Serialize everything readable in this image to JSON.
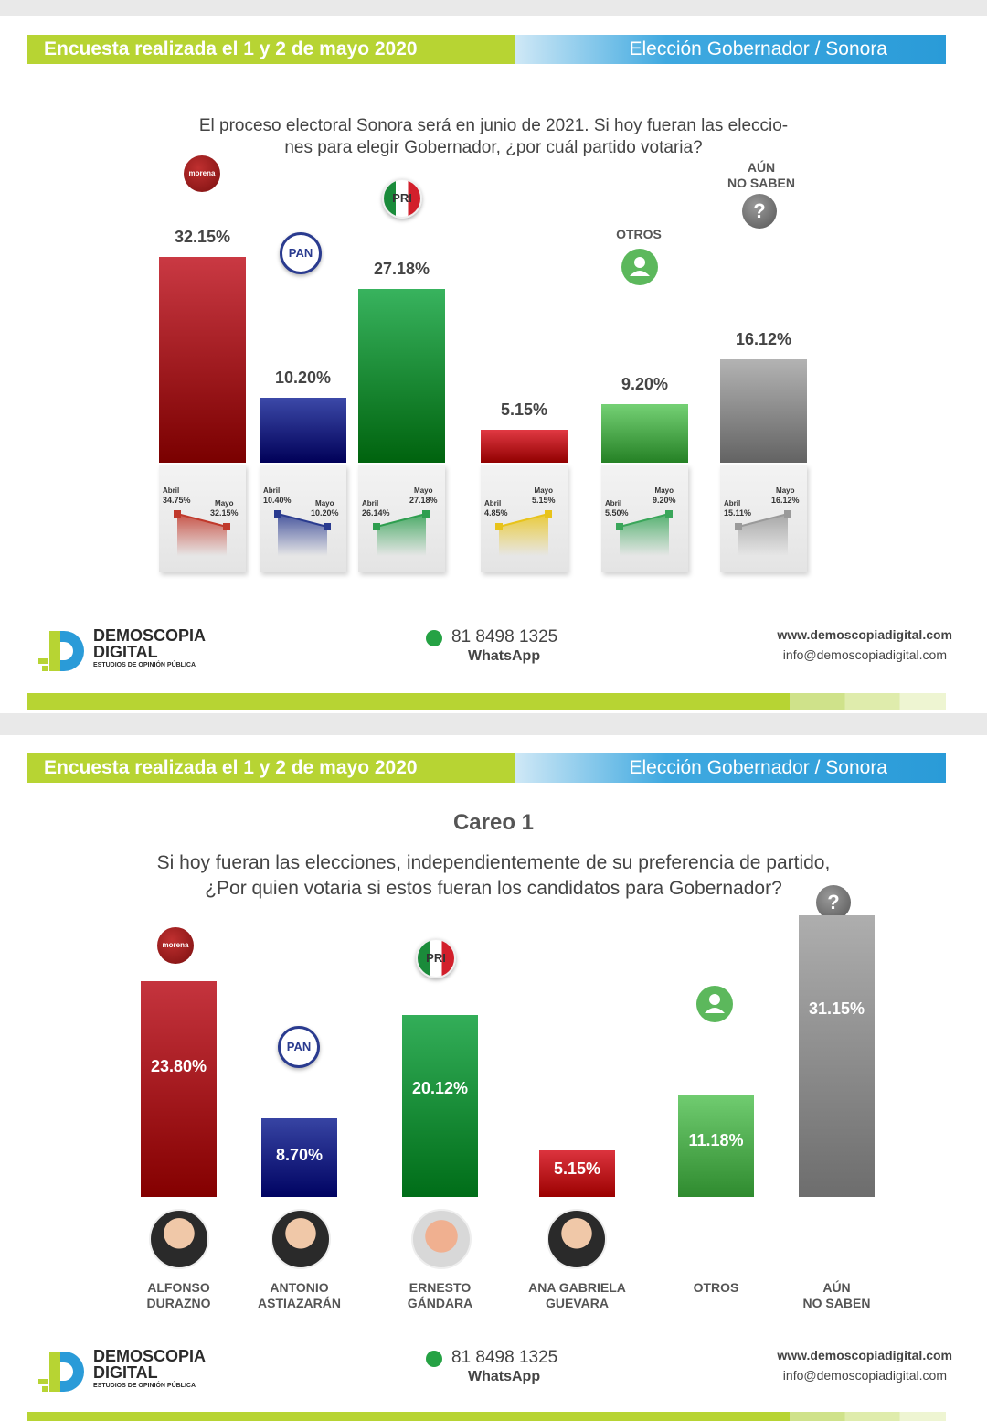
{
  "header": {
    "left": "Encuesta realizada el 1 y 2 de mayo 2020",
    "right": "Elección Gobernador / Sonora"
  },
  "slide1": {
    "question_line1": "El proceso electoral Sonora será en junio de 2021. Si hoy fueran las eleccio-",
    "question_line2": "nes para elegir Gobernador, ¿por cuál partido votaria?",
    "labels": {
      "otros": "OTROS",
      "no_saben_1": "AÚN",
      "no_saben_2": "NO SABEN"
    },
    "logo_text": {
      "morena": "morena",
      "pan": "PAN",
      "pri": "PRI",
      "unknown": "?"
    }
  },
  "slide2": {
    "careo": "Careo 1",
    "question_line1": "Si hoy fueran las elecciones, independientemente de su preferencia de partido,",
    "question_line2": "¿Por quien votaria si estos fueran los candidatos para Gobernador?",
    "candidates": [
      [
        "ALFONSO",
        "DURAZNO"
      ],
      [
        "ANTONIO",
        "ASTIAZARÁN"
      ],
      [
        "ERNESTO",
        "GÁNDARA"
      ],
      [
        "ANA GABRIELA",
        "GUEVARA"
      ],
      [
        "OTROS",
        ""
      ],
      [
        "AÚN",
        "NO SABEN"
      ]
    ]
  },
  "footer": {
    "brand1": "DEMOSCOPIA",
    "brand2": "DIGITAL",
    "brand3": "ESTUDIOS DE OPINIÓN PÚBLICA",
    "phone": "81 8498 1325",
    "whatsapp": "WhatsApp",
    "web": "www.demoscopiadigital.com",
    "email": "info@demoscopiadigital.com"
  },
  "chart_data": [
    {
      "type": "bar",
      "categories": [
        "morena",
        "PAN",
        "PRI",
        "",
        "OTROS",
        "AÚN NO SABEN"
      ],
      "values": [
        32.15,
        10.2,
        27.18,
        5.15,
        9.2,
        16.12
      ],
      "value_labels": [
        "32.15%",
        "10.20%",
        "27.18%",
        "5.15%",
        "9.20%",
        "16.12%"
      ],
      "colors": [
        "#b1202a",
        "#23308f",
        "#1f9a45",
        "#c8202a",
        "#5cb85c",
        "#9a9a9a"
      ],
      "trend": {
        "from_label": "Abril",
        "to_label": "Mayo",
        "abril": [
          34.75,
          10.4,
          26.14,
          4.85,
          5.5,
          15.11
        ],
        "mayo": [
          32.15,
          10.2,
          27.18,
          5.15,
          9.2,
          16.12
        ],
        "abril_labels": [
          "34.75%",
          "10.40%",
          "26.14%",
          "4.85%",
          "5.50%",
          "15.11%"
        ],
        "mayo_labels": [
          "32.15%",
          "10.20%",
          "27.18%",
          "5.15%",
          "9.20%",
          "16.12%"
        ],
        "colors": [
          "#c0392b",
          "#2a3b8f",
          "#2e9e4f",
          "#e8c31a",
          "#3aa65a",
          "#9a9a9a"
        ]
      }
    },
    {
      "type": "bar",
      "categories": [
        "ALFONSO DURAZNO",
        "ANTONIO ASTIAZARÁN",
        "ERNESTO GÁNDARA",
        "ANA GABRIELA GUEVARA",
        "OTROS",
        "AÚN NO SABEN"
      ],
      "values": [
        23.8,
        8.7,
        20.12,
        5.15,
        11.18,
        31.15
      ],
      "value_labels": [
        "23.80%",
        "8.70%",
        "20.12%",
        "5.15%",
        "11.18%",
        "31.15%"
      ],
      "colors": [
        "#b1202a",
        "#23308f",
        "#1f9a45",
        "#c8202a",
        "#5cb85c",
        "#9a9a9a"
      ]
    }
  ]
}
